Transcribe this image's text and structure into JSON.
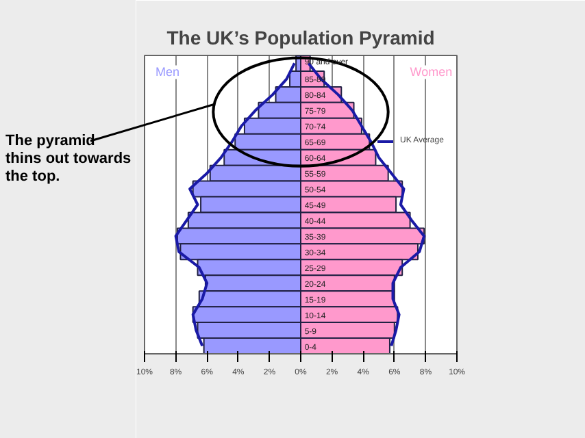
{
  "chart_data": {
    "type": "bar",
    "orientation": "horizontal",
    "title": "The UK’s Population Pyramid",
    "categories": [
      "90 and over",
      "85-89",
      "80-84",
      "75-79",
      "70-74",
      "65-69",
      "60-64",
      "55-59",
      "50-54",
      "45-49",
      "40-44",
      "35-39",
      "30-34",
      "25-29",
      "20-24",
      "15-19",
      "10-14",
      "5-9",
      "0-4"
    ],
    "series": [
      {
        "name": "Men",
        "color": "#9999ff",
        "values": [
          -0.3,
          -0.7,
          -1.6,
          -2.7,
          -3.6,
          -4.2,
          -4.9,
          -5.8,
          -6.9,
          -6.4,
          -7.2,
          -7.9,
          -7.7,
          -6.6,
          -6.1,
          -6.5,
          -6.9,
          -6.6,
          -6.2
        ]
      },
      {
        "name": "Women",
        "color": "#ff99cc",
        "values": [
          0.6,
          1.5,
          2.6,
          3.4,
          3.9,
          4.4,
          4.8,
          5.6,
          6.5,
          6.1,
          7.0,
          7.9,
          7.5,
          6.5,
          6.0,
          6.0,
          6.2,
          6.0,
          5.7
        ]
      },
      {
        "name": "UK Average",
        "type": "line",
        "color": "#1a1aa6",
        "values": [
          0.5,
          1.3,
          2.4,
          3.3,
          3.9,
          4.5,
          5.0,
          5.8,
          6.6,
          6.4,
          7.1,
          7.9,
          7.6,
          6.4,
          5.9,
          5.9,
          6.3,
          6.1,
          5.8
        ]
      },
      {
        "type": "line",
        "color": "#1a1aa6",
        "values": [
          -0.4,
          -0.9,
          -1.8,
          -2.9,
          -3.8,
          -4.4,
          -5.1,
          -6.0,
          -7.1,
          -6.6,
          -7.3,
          -8.0,
          -7.8,
          -6.5,
          -6.0,
          -6.3,
          -6.9,
          -6.7,
          -6.3
        ]
      }
    ],
    "xlim": [
      -10,
      10
    ],
    "xticks": [
      {
        "value": -10,
        "label": "10%"
      },
      {
        "value": -8,
        "label": "8%"
      },
      {
        "value": -6,
        "label": "6%"
      },
      {
        "value": -4,
        "label": "4%"
      },
      {
        "value": -2,
        "label": "2%"
      },
      {
        "value": 0,
        "label": "0%"
      },
      {
        "value": 2,
        "label": "2%"
      },
      {
        "value": 4,
        "label": "4%"
      },
      {
        "value": 6,
        "label": "6%"
      },
      {
        "value": 8,
        "label": "8%"
      },
      {
        "value": 10,
        "label": "10%"
      }
    ],
    "grid": "x",
    "legend": "top right",
    "stacked": true,
    "annotations": [
      "The pyramid thins out towards the top."
    ]
  }
}
